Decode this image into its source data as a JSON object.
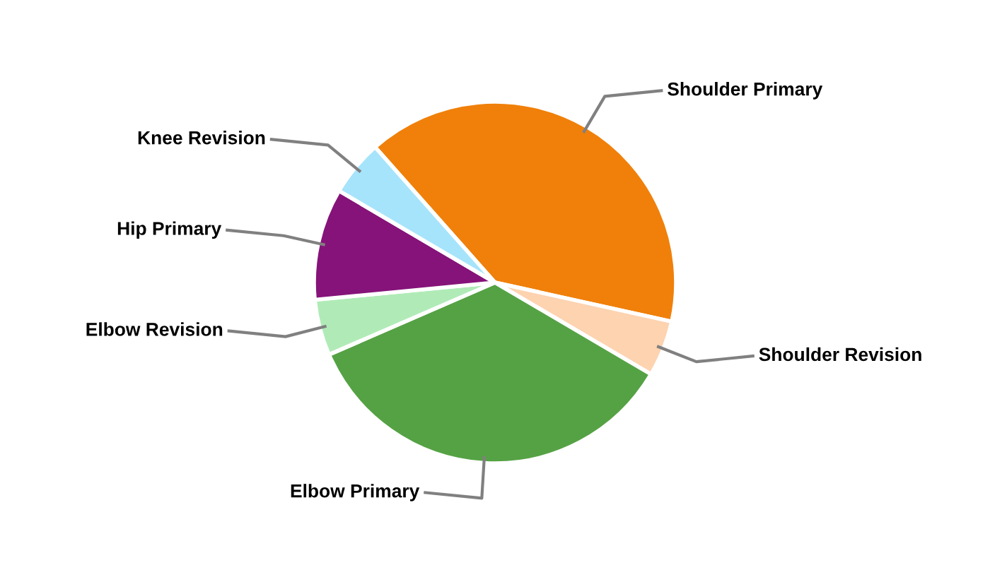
{
  "chart_data": {
    "type": "pie",
    "categories": [
      "Shoulder Primary",
      "Shoulder Revision",
      "Elbow Primary",
      "Elbow Revision",
      "Hip Primary",
      "Knee Revision"
    ],
    "values": [
      40,
      5,
      35,
      5,
      10,
      5
    ],
    "colors": [
      "#f0800a",
      "#fdd3b0",
      "#55a244",
      "#b0ebb7",
      "#861379",
      "#a6e4fb"
    ]
  }
}
